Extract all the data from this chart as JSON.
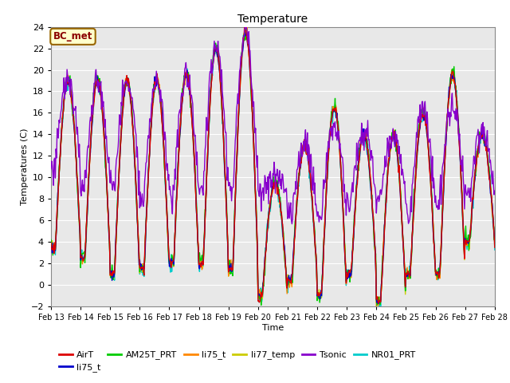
{
  "title": "Temperature",
  "xlabel": "Time",
  "ylabel": "Temperatures (C)",
  "ylim": [
    -2,
    24
  ],
  "xlim": [
    0,
    15
  ],
  "x_tick_labels": [
    "Feb 13",
    "Feb 14",
    "Feb 15",
    "Feb 16",
    "Feb 17",
    "Feb 18",
    "Feb 19",
    "Feb 20",
    "Feb 21",
    "Feb 22",
    "Feb 23",
    "Feb 24",
    "Feb 25",
    "Feb 26",
    "Feb 27",
    "Feb 28"
  ],
  "annotation_text": "BC_met",
  "annotation_bg": "#ffffcc",
  "annotation_border": "#996600",
  "series_colors": {
    "AirT": "#dd0000",
    "li75_t_blue": "#0000cc",
    "AM25T_PRT": "#00cc00",
    "li75_t_orange": "#ff8800",
    "li77_temp": "#cccc00",
    "Tsonic": "#8800cc",
    "NR01_PRT": "#00cccc"
  },
  "plot_bg": "#e8e8e8",
  "fig_bg": "#ffffff",
  "grid_color": "#ffffff",
  "legend_labels": [
    "AirT",
    "li75_t",
    "AM25T_PRT",
    "li75_t",
    "li77_temp",
    "Tsonic",
    "NR01_PRT"
  ]
}
